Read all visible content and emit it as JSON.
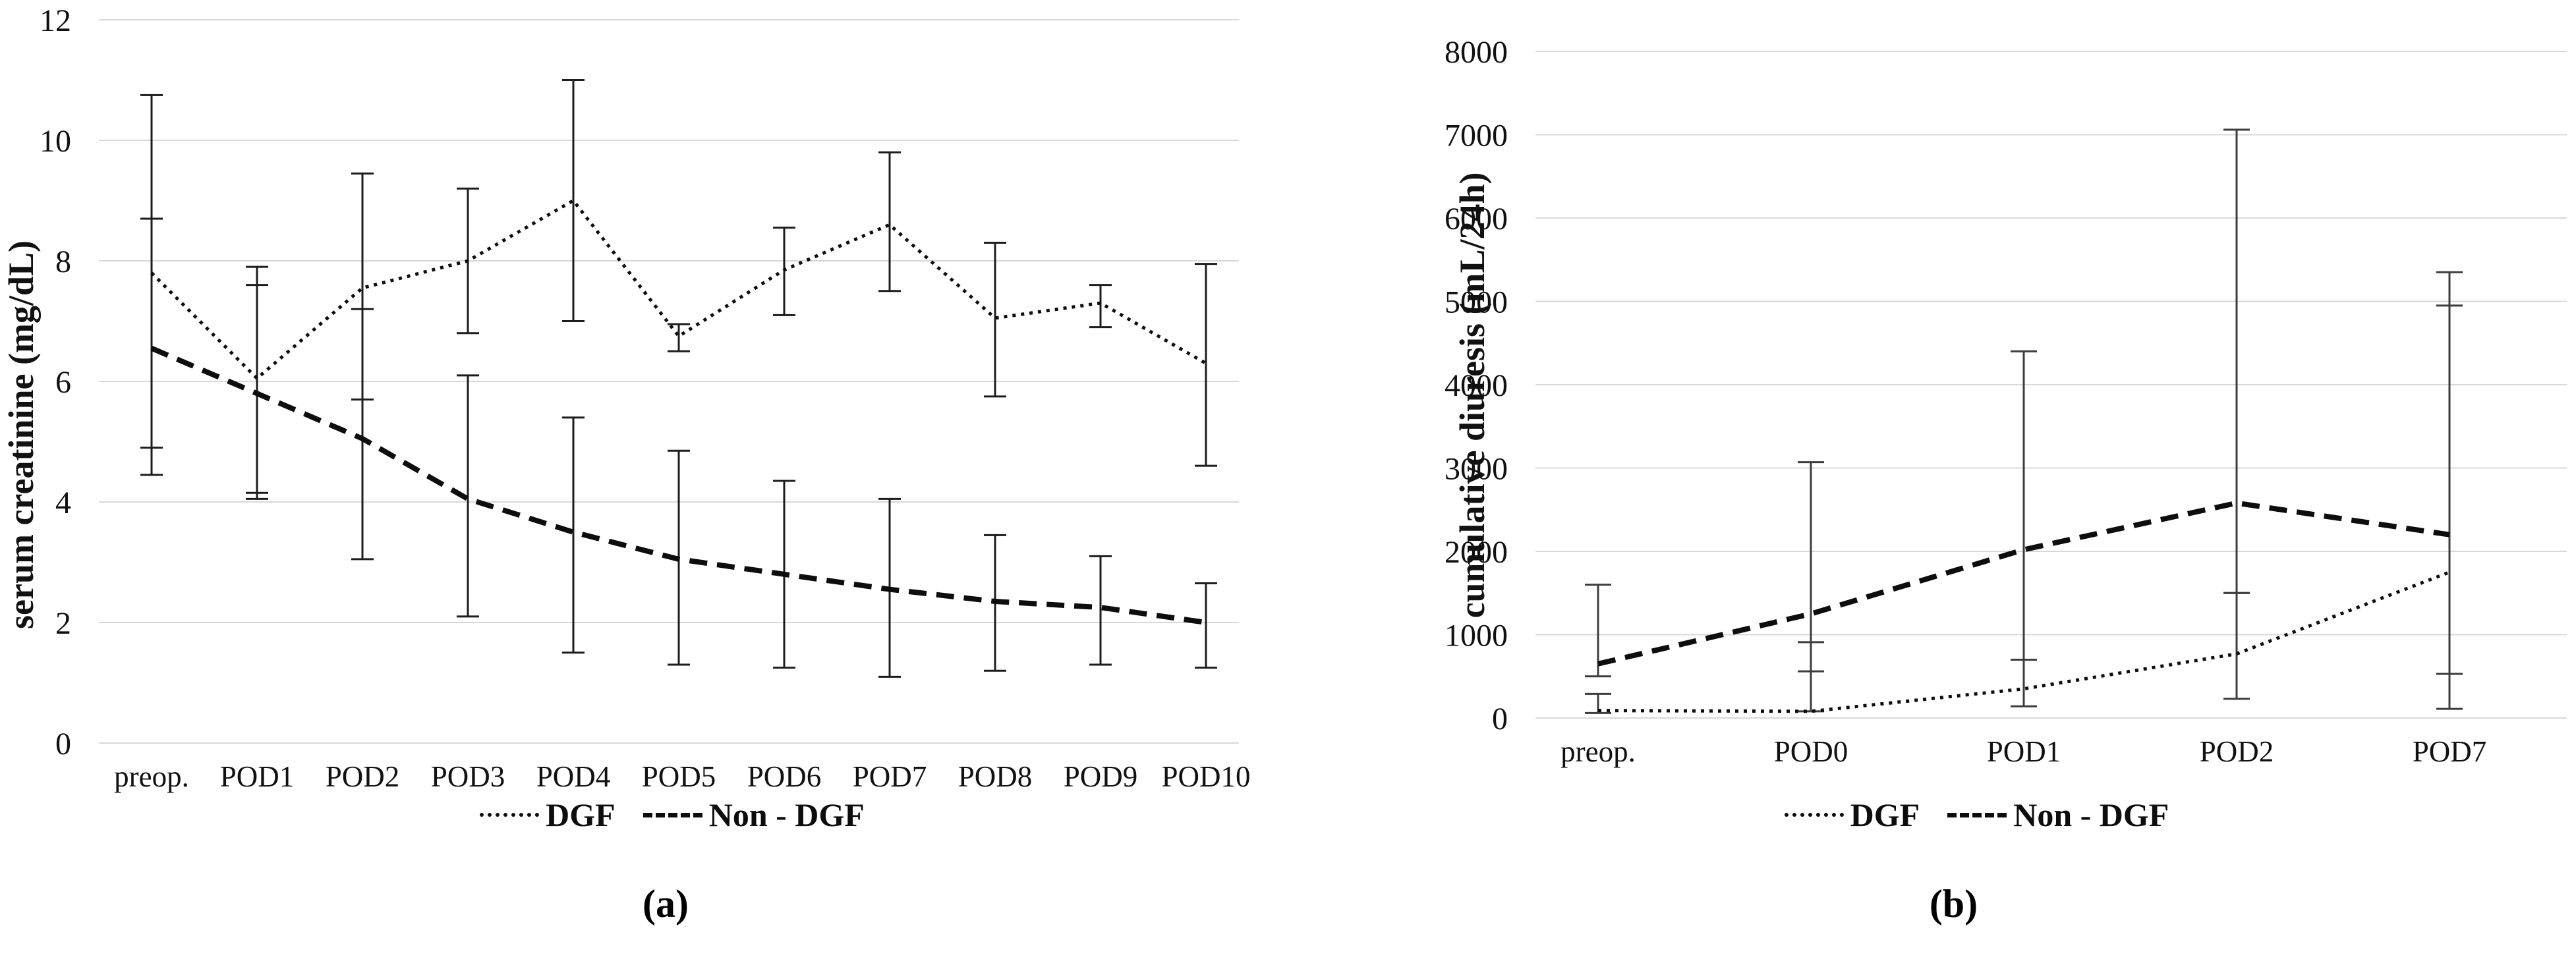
{
  "style": {
    "background": "#ffffff",
    "grid_color": "#d8d8d8",
    "line_color": "#0d0d0d"
  },
  "chart_data": [
    {
      "id": "a",
      "type": "line",
      "caption": "(a)",
      "ylabel": "serum creatinine (mg/dL)",
      "ylim": [
        0,
        12
      ],
      "ystep": 2,
      "yticks": [
        "0",
        "2",
        "4",
        "6",
        "8",
        "10",
        "12"
      ],
      "grid": "horizontal",
      "legend_position": "bottom",
      "error_color": "#1c1c1c",
      "categories": [
        "preop.",
        "POD1",
        "POD2",
        "POD3",
        "POD4",
        "POD5",
        "POD6",
        "POD7",
        "POD8",
        "POD9",
        "POD10"
      ],
      "series": [
        {
          "name": "DGF",
          "style": "dotted",
          "values": [
            7.8,
            6.05,
            7.55,
            8.0,
            9.0,
            6.75,
            7.85,
            8.6,
            7.05,
            7.3,
            6.3
          ],
          "err_low": [
            4.9,
            4.15,
            5.7,
            6.8,
            7.0,
            6.5,
            7.1,
            7.5,
            5.75,
            6.9,
            4.6
          ],
          "err_high": [
            10.75,
            7.9,
            9.45,
            9.2,
            11.0,
            6.95,
            8.55,
            9.8,
            8.3,
            7.6,
            7.95
          ]
        },
        {
          "name": "Non - DGF",
          "style": "dashed",
          "values": [
            6.55,
            5.8,
            5.05,
            4.05,
            3.5,
            3.05,
            2.8,
            2.55,
            2.35,
            2.25,
            2.0
          ],
          "err_low": [
            4.45,
            4.05,
            3.05,
            2.1,
            1.5,
            1.3,
            1.25,
            1.1,
            1.2,
            1.3,
            1.25
          ],
          "err_high": [
            8.7,
            7.6,
            7.2,
            6.1,
            5.4,
            4.85,
            4.35,
            4.05,
            3.45,
            3.1,
            2.65
          ]
        }
      ]
    },
    {
      "id": "b",
      "type": "line",
      "caption": "(b)",
      "ylabel": "cumulative diuresis (mL/24h)",
      "ylim": [
        0,
        8000
      ],
      "ystep": 1000,
      "yticks": [
        "0",
        "1000",
        "2000",
        "3000",
        "4000",
        "5000",
        "6000",
        "7000",
        "8000"
      ],
      "grid": "horizontal",
      "legend_position": "bottom",
      "error_color": "#3c3c3c",
      "categories": [
        "preop.",
        "POD0",
        "POD1",
        "POD2",
        "POD7"
      ],
      "series": [
        {
          "name": "DGF",
          "style": "dotted",
          "values": [
            90,
            80,
            350,
            770,
            1750
          ],
          "err_low": [
            60,
            80,
            140,
            230,
            110
          ],
          "err_high": [
            290,
            910,
            700,
            1500,
            4950
          ]
        },
        {
          "name": "Non - DGF",
          "style": "dashed",
          "values": [
            650,
            1250,
            2020,
            2580,
            2200
          ],
          "err_low": [
            500,
            560,
            700,
            1500,
            530
          ],
          "err_high": [
            1600,
            3070,
            4400,
            7060,
            5350
          ]
        }
      ]
    }
  ]
}
